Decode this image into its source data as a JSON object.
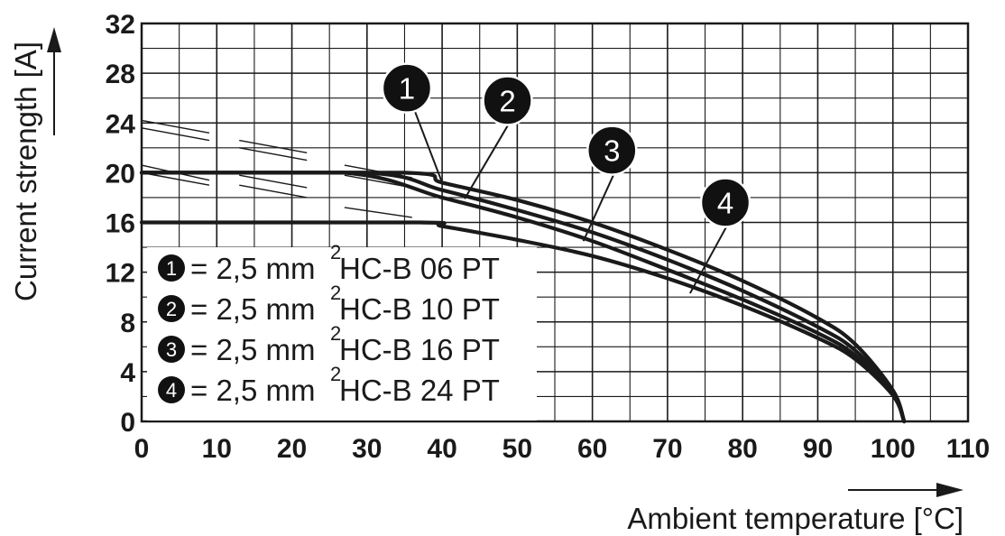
{
  "chart_data": {
    "type": "line",
    "xlabel": "Ambient temperature [°C]",
    "ylabel": "Current strength [A]",
    "xlim": [
      0,
      110
    ],
    "ylim": [
      0,
      32
    ],
    "x_ticks": [
      "0",
      "10",
      "20",
      "30",
      "40",
      "50",
      "60",
      "70",
      "80",
      "90",
      "100",
      "110"
    ],
    "y_ticks": [
      "0",
      "4",
      "8",
      "12",
      "16",
      "20",
      "24",
      "28",
      "32"
    ],
    "grid": true,
    "legend_position": "bottom-left",
    "series": [
      {
        "marker": "1",
        "name": "= 2,5 mm",
        "name_sup": "2",
        "name_rest": " HC-B 06 PT",
        "x": [
          0,
          35,
          40,
          50,
          60,
          70,
          80,
          90,
          95,
          100,
          101.5
        ],
        "y": [
          20,
          20,
          19.2,
          17.8,
          16,
          13.8,
          11.3,
          8.3,
          6.2,
          2.5,
          0
        ]
      },
      {
        "marker": "2",
        "name": "= 2,5 mm",
        "name_sup": "2",
        "name_rest": " HC-B 10 PT",
        "x": [
          0,
          30,
          40,
          50,
          60,
          70,
          80,
          90,
          95,
          100,
          101.5
        ],
        "y": [
          20,
          20,
          18.6,
          17,
          15.2,
          13,
          10.5,
          7.6,
          5.7,
          2.3,
          0
        ]
      },
      {
        "marker": "3",
        "name": "= 2,5 mm",
        "name_sup": "2",
        "name_rest": " HC-B 16 PT",
        "x": [
          0,
          27,
          40,
          50,
          60,
          70,
          80,
          90,
          95,
          100,
          101.5
        ],
        "y": [
          20,
          20,
          18,
          16.4,
          14.5,
          12.2,
          9.8,
          7.1,
          5.3,
          2.2,
          0
        ]
      },
      {
        "marker": "4",
        "name": "= 2,5 mm",
        "name_sup": "2",
        "name_rest": " HC-B 24 PT",
        "x": [
          0,
          37,
          40,
          50,
          60,
          70,
          80,
          90,
          95,
          100,
          101.5
        ],
        "y": [
          16,
          16,
          15.7,
          14.6,
          13.3,
          11.5,
          9.3,
          6.7,
          5.0,
          2.1,
          0
        ]
      }
    ],
    "callouts": [
      {
        "label": "1",
        "x": 35.3,
        "y": 26.8,
        "target_x": 40,
        "target_y": 19.2
      },
      {
        "label": "2",
        "x": 48.7,
        "y": 25.8,
        "target_x": 43,
        "target_y": 17.9
      },
      {
        "label": "3",
        "x": 62.6,
        "y": 21.8,
        "target_x": 58.8,
        "target_y": 14.5
      },
      {
        "label": "4",
        "x": 77.7,
        "y": 17.6,
        "target_x": 73,
        "target_y": 10.3
      }
    ]
  }
}
